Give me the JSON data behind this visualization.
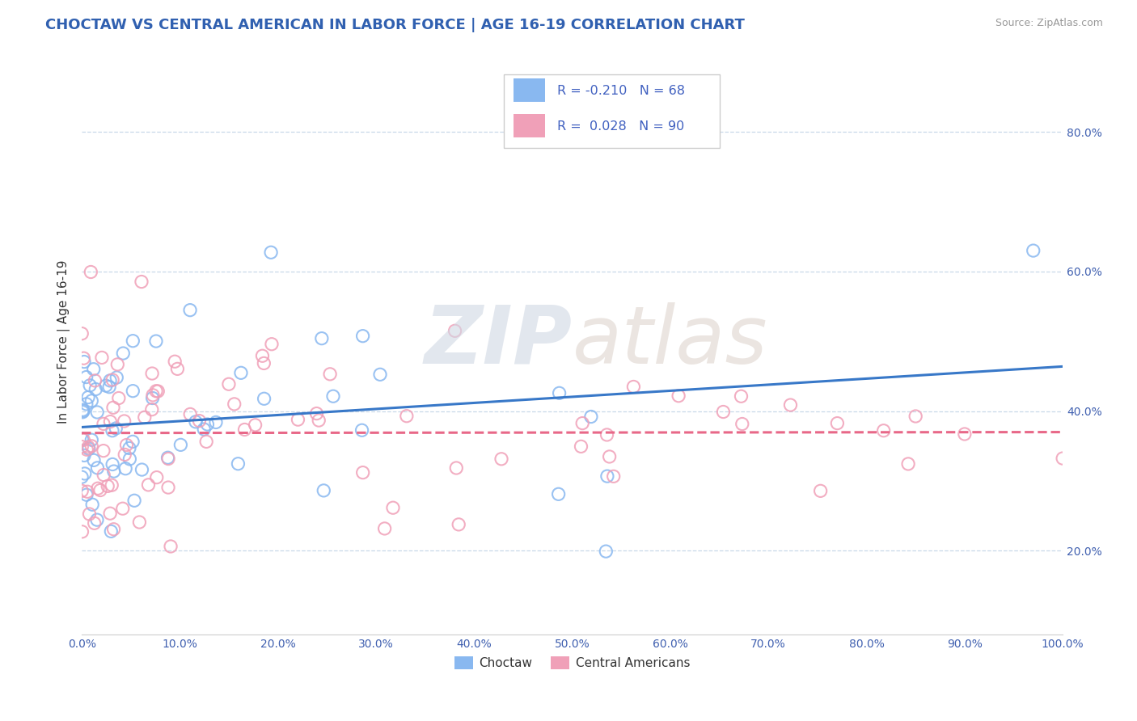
{
  "title": "CHOCTAW VS CENTRAL AMERICAN IN LABOR FORCE | AGE 16-19 CORRELATION CHART",
  "source_text": "Source: ZipAtlas.com",
  "ylabel": "In Labor Force | Age 16-19",
  "xmin": 0.0,
  "xmax": 1.0,
  "ymin": 0.08,
  "ymax": 0.92,
  "xticks": [
    0.0,
    0.1,
    0.2,
    0.3,
    0.4,
    0.5,
    0.6,
    0.7,
    0.8,
    0.9,
    1.0
  ],
  "xticklabels": [
    "0.0%",
    "10.0%",
    "20.0%",
    "30.0%",
    "40.0%",
    "50.0%",
    "60.0%",
    "70.0%",
    "80.0%",
    "90.0%",
    "100.0%"
  ],
  "yticks": [
    0.2,
    0.4,
    0.6,
    0.8
  ],
  "yticklabels": [
    "20.0%",
    "40.0%",
    "60.0%",
    "80.0%"
  ],
  "choctaw_color": "#89b8f0",
  "central_color": "#f0a0b8",
  "choctaw_line_color": "#3878c8",
  "central_line_color": "#e86888",
  "legend_r_color": "#4060c0",
  "title_color": "#3060b0",
  "legend_label_choctaw": "Choctaw",
  "legend_label_central": "Central Americans",
  "R_choctaw": -0.21,
  "N_choctaw": 68,
  "R_central": 0.028,
  "N_central": 90,
  "grid_color": "#c8d8e8",
  "source_color": "#999999",
  "tick_color": "#4060b0"
}
